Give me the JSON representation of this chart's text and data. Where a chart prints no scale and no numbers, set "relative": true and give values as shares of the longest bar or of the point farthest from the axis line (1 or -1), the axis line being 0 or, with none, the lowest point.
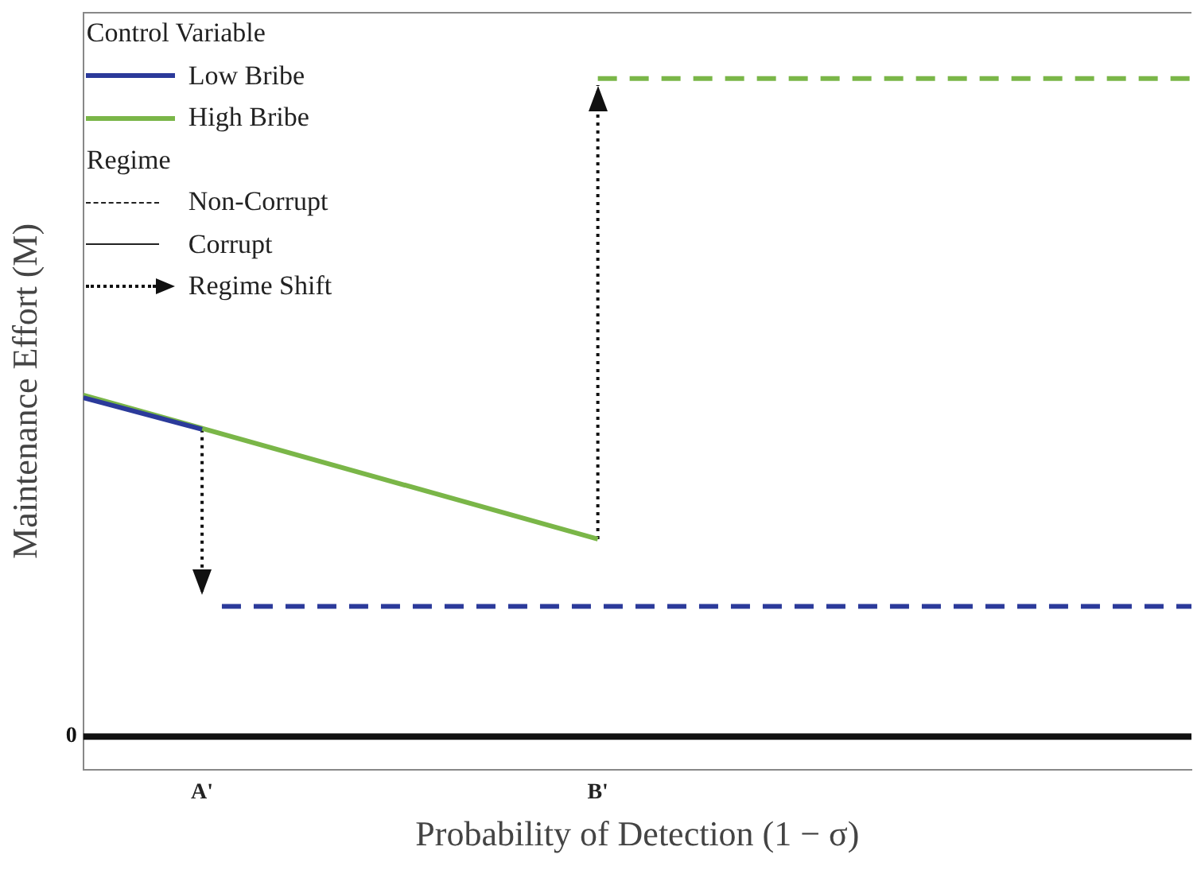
{
  "chart_data": {
    "type": "line",
    "relative": true,
    "xlabel": "Probability of Detection (1 − σ)",
    "ylabel": "Maintenance Effort (M)",
    "legend_title": "Control Variable",
    "legend": "top left",
    "categories": [
      null,
      null,
      null,
      null,
      null,
      null,
      "A'",
      null,
      null,
      null,
      null,
      null,
      null,
      null,
      null,
      null,
      null,
      null,
      null,
      null,
      null,
      null,
      null,
      null,
      null,
      null,
      "B'",
      null,
      null,
      null,
      null,
      null,
      null,
      null,
      null,
      null,
      null,
      null,
      null,
      null,
      null,
      null,
      null,
      null,
      null,
      null,
      null,
      null,
      null,
      null,
      null,
      null,
      null,
      null,
      null,
      null,
      null
    ],
    "series": [
      {
        "name": "Low Bribe",
        "color": "#2b3a9a",
        "line_style": "solid",
        "values": [
          0.515,
          null,
          null,
          null,
          null,
          null,
          0.467,
          null,
          null,
          null,
          null,
          null,
          null,
          null,
          null,
          null,
          null,
          null,
          null,
          null,
          null,
          null,
          null,
          null,
          null,
          null,
          null,
          null,
          null,
          null,
          null,
          null,
          null,
          null,
          null,
          null,
          null,
          null,
          null,
          null,
          null,
          null,
          null,
          null,
          null,
          null,
          null,
          null,
          null,
          null,
          null,
          null,
          null,
          null,
          null,
          null,
          null
        ]
      },
      {
        "color": "#2b3a9a",
        "line_style": "dashed",
        "values": [
          null,
          null,
          null,
          null,
          null,
          null,
          null,
          0.198,
          null,
          null,
          null,
          null,
          null,
          null,
          null,
          null,
          null,
          null,
          null,
          null,
          null,
          null,
          null,
          null,
          null,
          null,
          null,
          null,
          null,
          null,
          null,
          null,
          null,
          null,
          null,
          null,
          null,
          null,
          null,
          null,
          null,
          null,
          null,
          null,
          null,
          null,
          null,
          null,
          null,
          null,
          null,
          null,
          null,
          null,
          null,
          null,
          0.198
        ]
      },
      {
        "name": "High Bribe",
        "color": "#7ab648",
        "line_style": "solid",
        "values": [
          0.519,
          null,
          null,
          null,
          null,
          null,
          null,
          null,
          null,
          null,
          null,
          null,
          null,
          null,
          null,
          null,
          null,
          null,
          null,
          null,
          null,
          null,
          null,
          null,
          null,
          null,
          0.3,
          null,
          null,
          null,
          null,
          null,
          null,
          null,
          null,
          null,
          null,
          null,
          null,
          null,
          null,
          null,
          null,
          null,
          null,
          null,
          null,
          null,
          null,
          null,
          null,
          null,
          null,
          null,
          null,
          null,
          null
        ]
      },
      {
        "color": "#7ab648",
        "line_style": "dashed",
        "values": [
          null,
          null,
          null,
          null,
          null,
          null,
          null,
          null,
          null,
          null,
          null,
          null,
          null,
          null,
          null,
          null,
          null,
          null,
          null,
          null,
          null,
          null,
          null,
          null,
          null,
          null,
          1,
          null,
          null,
          null,
          null,
          null,
          null,
          null,
          null,
          null,
          null,
          null,
          null,
          null,
          null,
          null,
          null,
          null,
          null,
          null,
          null,
          null,
          null,
          null,
          null,
          null,
          null,
          null,
          null,
          null,
          1
        ]
      },
      {
        "name": "Regime Shift",
        "color": "#111111",
        "line_style": "dotted",
        "x": [
          "A'",
          "A'"
        ],
        "values": [
          0.467,
          0.215
        ]
      },
      {
        "color": "#111111",
        "line_style": "dotted",
        "x": [
          "B'",
          "B'"
        ],
        "values": [
          0.3,
          0.99
        ]
      }
    ],
    "ref_lines": [
      {
        "axis": "y",
        "value": 0,
        "label": "0",
        "color": "#111111"
      }
    ],
    "annotations": [
      "Regime",
      "Non-Corrupt",
      "Corrupt"
    ]
  }
}
